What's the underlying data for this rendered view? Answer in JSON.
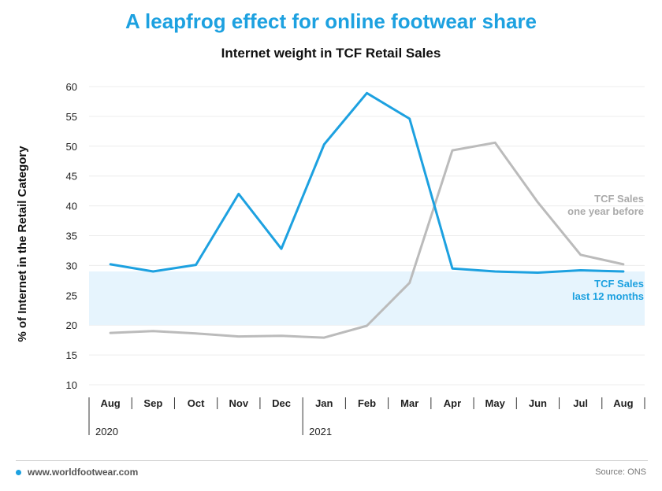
{
  "header": {
    "title": "A leapfrog effect for online footwear share",
    "subtitle": "Internet weight in TCF Retail Sales"
  },
  "footer": {
    "website": "www.worldfootwear.com",
    "source": "Source: ONS"
  },
  "colors": {
    "title": "#1da1e0",
    "current": "#1da1e0",
    "previous": "#bbbbbb",
    "band": "#e6f4fd"
  },
  "chart_data": {
    "type": "line",
    "title": "Internet weight in TCF Retail Sales",
    "ylabel": "% of Internet in the Retail Category",
    "xlabel": "",
    "ylim": [
      10,
      60
    ],
    "yticks": [
      10,
      15,
      20,
      25,
      30,
      35,
      40,
      45,
      50,
      55,
      60
    ],
    "grid": true,
    "categories": [
      "Aug",
      "Sep",
      "Oct",
      "Nov",
      "Dec",
      "Jan",
      "Feb",
      "Mar",
      "Apr",
      "May",
      "Jun",
      "Jul",
      "Aug"
    ],
    "year_labels": [
      {
        "label": "2020",
        "start_index": 0
      },
      {
        "label": "2021",
        "start_index": 5
      }
    ],
    "band": {
      "from": 20,
      "to": 29
    },
    "series": [
      {
        "name": "TCF Sales last 12 months",
        "label_lines": [
          "TCF Sales",
          "last 12 months"
        ],
        "color": "#1da1e0",
        "values": [
          30.2,
          29.0,
          30.1,
          42.0,
          32.8,
          50.3,
          58.9,
          54.6,
          29.5,
          29.0,
          28.8,
          29.2,
          29.0
        ]
      },
      {
        "name": "TCF Sales one year before",
        "label_lines": [
          "TCF Sales",
          "one year before"
        ],
        "color": "#bbbbbb",
        "values": [
          18.7,
          19.0,
          18.6,
          18.1,
          18.2,
          17.9,
          19.9,
          27.1,
          49.3,
          50.6,
          40.6,
          31.8,
          30.2
        ]
      }
    ]
  }
}
